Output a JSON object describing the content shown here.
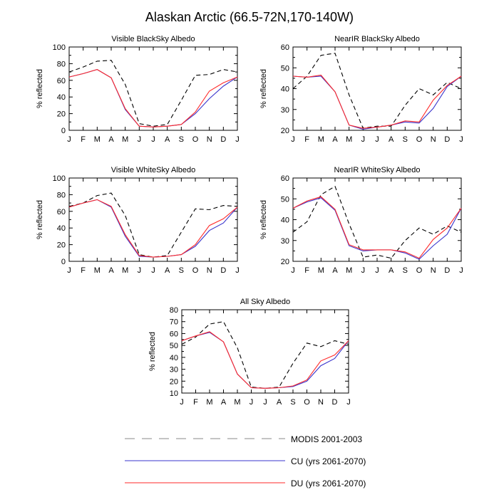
{
  "title": "Alaskan Arctic (66.5-72N,170-140W)",
  "legend": [
    {
      "label": "MODIS 2001-2003",
      "color": "#000000",
      "dash": "dashed"
    },
    {
      "label": "CU (yrs 2061-2070)",
      "color": "#3a35cc",
      "dash": "solid"
    },
    {
      "label": "DU (yrs 2061-2070)",
      "color": "#ff2a2a",
      "dash": "solid"
    }
  ],
  "chart_data": [
    {
      "type": "line",
      "title": "Visible BlackSky Albedo",
      "ylabel": "% reflected",
      "ylim": [
        0,
        100
      ],
      "yticks": [
        0,
        20,
        40,
        60,
        80,
        100
      ],
      "categories": [
        "J",
        "F",
        "M",
        "A",
        "M",
        "J",
        "J",
        "A",
        "S",
        "O",
        "N",
        "D",
        "J"
      ],
      "series": [
        {
          "name": "MODIS 2001-2003",
          "values": [
            70,
            76,
            83,
            84,
            55,
            8,
            5,
            7,
            36,
            66,
            67,
            73,
            70
          ]
        },
        {
          "name": "CU (yrs 2061-2070)",
          "values": [
            64,
            68,
            73,
            63,
            25,
            5,
            4,
            5,
            7,
            20,
            38,
            53,
            64
          ]
        },
        {
          "name": "DU (yrs 2061-2070)",
          "values": [
            64,
            68,
            73,
            63,
            26,
            5,
            4,
            5,
            7,
            22,
            47,
            57,
            64
          ]
        }
      ]
    },
    {
      "type": "line",
      "title": "NearIR BlackSky Albedo",
      "ylabel": "% reflected",
      "ylim": [
        20,
        60
      ],
      "yticks": [
        20,
        30,
        40,
        50,
        60
      ],
      "categories": [
        "J",
        "F",
        "M",
        "A",
        "M",
        "J",
        "J",
        "A",
        "S",
        "O",
        "N",
        "D",
        "J"
      ],
      "series": [
        {
          "name": "MODIS 2001-2003",
          "values": [
            40,
            46,
            56,
            57,
            37,
            21,
            22,
            22,
            32,
            40,
            37,
            43,
            40
          ]
        },
        {
          "name": "CU (yrs 2061-2070)",
          "values": [
            46,
            45.5,
            46,
            38.5,
            22.5,
            20.5,
            21.5,
            22.5,
            24,
            23.5,
            30.5,
            41,
            46
          ]
        },
        {
          "name": "DU (yrs 2061-2070)",
          "values": [
            46,
            45.5,
            46.5,
            38.5,
            22.5,
            21,
            21.5,
            22.5,
            24.5,
            24,
            34.5,
            41.5,
            46
          ]
        }
      ]
    },
    {
      "type": "line",
      "title": "Visible WhiteSky Albedo",
      "ylabel": "% reflected",
      "ylim": [
        0,
        100
      ],
      "yticks": [
        0,
        20,
        40,
        60,
        80,
        100
      ],
      "categories": [
        "J",
        "F",
        "M",
        "A",
        "M",
        "J",
        "J",
        "A",
        "S",
        "O",
        "N",
        "D",
        "J"
      ],
      "series": [
        {
          "name": "MODIS 2001-2003",
          "values": [
            66,
            70,
            79,
            82,
            55,
            8,
            5,
            7,
            35,
            63,
            62,
            67,
            66
          ]
        },
        {
          "name": "CU (yrs 2061-2070)",
          "values": [
            65,
            70,
            74,
            65,
            30,
            6,
            5,
            6,
            8,
            18,
            37,
            46,
            65
          ]
        },
        {
          "name": "DU (yrs 2061-2070)",
          "values": [
            65,
            70,
            74,
            66,
            32,
            7,
            5,
            6,
            8,
            20,
            43,
            51,
            65
          ]
        }
      ]
    },
    {
      "type": "line",
      "title": "NearIR WhiteSky Albedo",
      "ylabel": "% reflected",
      "ylim": [
        20,
        60
      ],
      "yticks": [
        20,
        30,
        40,
        50,
        60
      ],
      "categories": [
        "J",
        "F",
        "M",
        "A",
        "M",
        "J",
        "J",
        "A",
        "S",
        "O",
        "N",
        "D",
        "J"
      ],
      "series": [
        {
          "name": "MODIS 2001-2003",
          "values": [
            34,
            39,
            52,
            56,
            38,
            22,
            23,
            21.5,
            30,
            36,
            33,
            37,
            34
          ]
        },
        {
          "name": "CU (yrs 2061-2070)",
          "values": [
            45.5,
            48.5,
            50.5,
            44.5,
            27.5,
            25,
            25.5,
            25.5,
            24,
            21,
            27.5,
            33,
            45.5
          ]
        },
        {
          "name": "DU (yrs 2061-2070)",
          "values": [
            45.5,
            49,
            51,
            45,
            28,
            25.5,
            25.5,
            25.5,
            24.5,
            21.5,
            30.5,
            36,
            45.5
          ]
        }
      ]
    },
    {
      "type": "line",
      "title": "All Sky Albedo",
      "ylabel": "% reflected",
      "ylim": [
        10,
        80
      ],
      "yticks": [
        10,
        20,
        30,
        40,
        50,
        60,
        70,
        80
      ],
      "categories": [
        "J",
        "F",
        "M",
        "A",
        "M",
        "J",
        "J",
        "A",
        "S",
        "O",
        "N",
        "D",
        "J"
      ],
      "series": [
        {
          "name": "MODIS 2001-2003",
          "values": [
            51,
            57,
            68,
            70,
            48,
            15,
            14,
            15,
            35,
            52,
            49,
            54,
            51
          ]
        },
        {
          "name": "CU (yrs 2061-2070)",
          "values": [
            54,
            58,
            61,
            53,
            26,
            14.5,
            14,
            14.5,
            15.5,
            20,
            33,
            39,
            54
          ]
        },
        {
          "name": "DU (yrs 2061-2070)",
          "values": [
            54,
            58,
            61.5,
            53,
            26,
            14.5,
            14,
            14.5,
            16,
            21,
            37,
            42,
            54
          ]
        }
      ]
    }
  ]
}
